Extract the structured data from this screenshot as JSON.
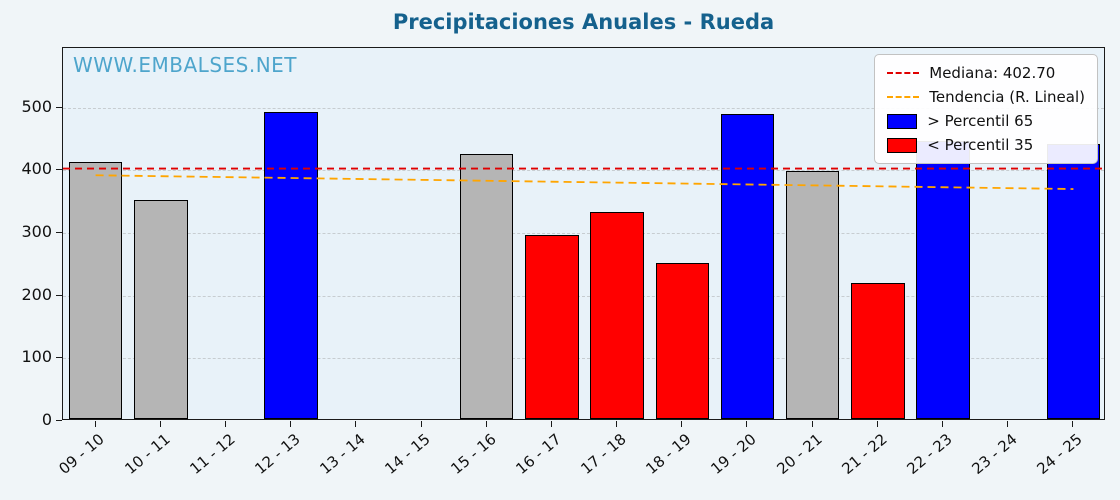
{
  "watermark": "WWW.EMBALSES.NET",
  "colors": {
    "title": "#15618d",
    "watermark": "#4ea5cc",
    "fig_bg": "#f0f5f8",
    "plot_bg": "#e8f2f9",
    "grid": "#c7cdd1",
    "median_line": "#e00000",
    "trend_line": "#ffa500",
    "bar_blue": "#0000ff",
    "bar_red": "#ff0000",
    "bar_gray": "#b5b5b5",
    "bar_edge": "#000000"
  },
  "chart_data": {
    "type": "bar",
    "title": "Precipitaciones Anuales - Rueda",
    "xlabel": "",
    "ylabel": "",
    "categories": [
      "09 - 10",
      "10 - 11",
      "11 - 12",
      "12 - 13",
      "13 - 14",
      "14 - 15",
      "15 - 16",
      "16 - 17",
      "17 - 18",
      "18 - 19",
      "19 - 20",
      "20 - 21",
      "21 - 22",
      "22 - 23",
      "23 - 24",
      "24 - 25"
    ],
    "values": [
      410,
      349,
      0,
      489,
      0,
      0,
      423,
      294,
      331,
      249,
      486,
      396,
      217,
      444,
      0,
      439
    ],
    "bar_colors": [
      "gray",
      "gray",
      null,
      "blue",
      null,
      null,
      "gray",
      "red",
      "red",
      "red",
      "blue",
      "gray",
      "red",
      "blue",
      null,
      "blue"
    ],
    "median": 402.7,
    "trend": {
      "start": 392,
      "end": 370
    },
    "ylim": [
      0,
      595
    ],
    "yticks": [
      0,
      100,
      200,
      300,
      400,
      500
    ],
    "grid": true,
    "legend_position": "upper right",
    "legend_labels": {
      "median": "Mediana: 402.70",
      "trend": "Tendencia (R. Lineal)",
      "p65": "> Percentil 65",
      "p35": "< Percentil 35"
    }
  }
}
